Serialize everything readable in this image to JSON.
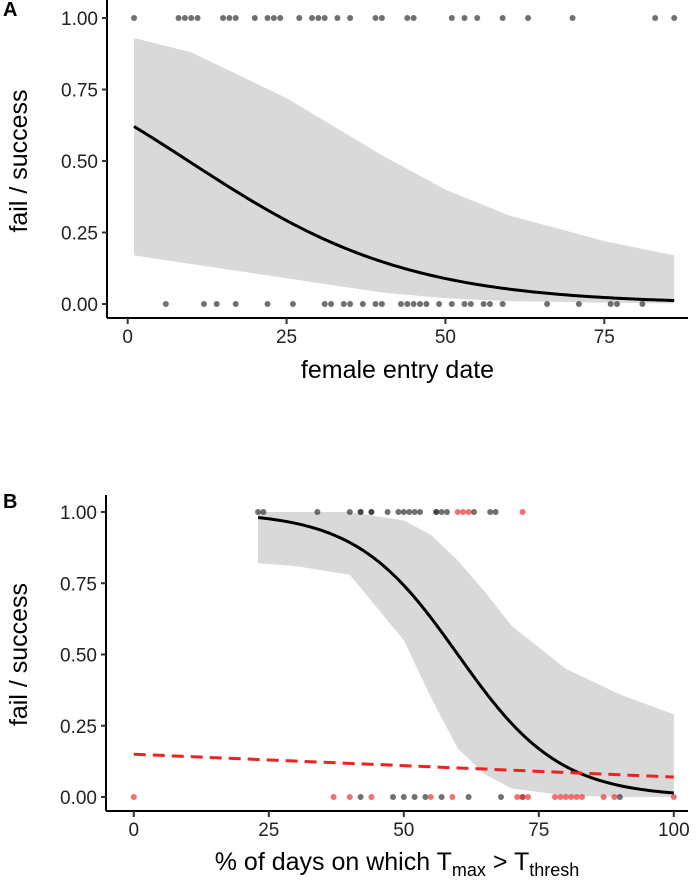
{
  "chart_data": [
    {
      "panel_label": "A",
      "type": "scatter",
      "xlabel": "female entry date",
      "ylabel": "fail / success",
      "xlim": [
        0,
        86
      ],
      "ylim": [
        0,
        1
      ],
      "xticks": [
        "0",
        "25",
        "50",
        "75"
      ],
      "xtick_values": [
        0,
        25,
        50,
        75
      ],
      "yticks": [
        "0.00",
        "0.25",
        "0.50",
        "0.75",
        "1.00"
      ],
      "ytick_values": [
        0,
        0.25,
        0.5,
        0.75,
        1
      ],
      "grid": false,
      "colors": {
        "points": "#333333",
        "fit": "#000000",
        "band": "#d9d9d9"
      },
      "points": [
        {
          "y": 1,
          "x": [
            1,
            8,
            9,
            10,
            11,
            15,
            16,
            17,
            20,
            22,
            23,
            24,
            27,
            29,
            30,
            31,
            33,
            35,
            39,
            40,
            44,
            45,
            51,
            53,
            55,
            59,
            63,
            70,
            83,
            86
          ]
        },
        {
          "y": 0,
          "x": [
            6,
            12,
            14,
            17,
            22,
            26,
            31,
            32,
            34,
            35,
            37,
            39,
            40,
            43,
            44,
            45,
            46,
            47,
            49,
            51,
            53,
            54,
            56,
            57,
            59,
            66,
            71,
            76,
            77,
            81
          ]
        }
      ],
      "fit": {
        "type": "logistic",
        "intercept": 0.55,
        "slope": -0.0575,
        "x_range": [
          1,
          86
        ]
      },
      "band": {
        "x": [
          1,
          10,
          25,
          40,
          50,
          60,
          75,
          86
        ],
        "lower": [
          0.17,
          0.14,
          0.09,
          0.04,
          0.02,
          0.01,
          0.005,
          0.002
        ],
        "upper": [
          0.93,
          0.88,
          0.72,
          0.52,
          0.4,
          0.31,
          0.22,
          0.17
        ]
      }
    },
    {
      "panel_label": "B",
      "type": "scatter",
      "xlabel": "% of days on which T",
      "xlabel_sub1": "max",
      "xlabel_mid": " > T",
      "xlabel_sub2": "thresh",
      "ylabel": "fail / success",
      "xlim": [
        0,
        100
      ],
      "ylim": [
        0,
        1
      ],
      "xticks": [
        "0",
        "25",
        "50",
        "75",
        "100"
      ],
      "xtick_values": [
        0,
        25,
        50,
        75,
        100
      ],
      "yticks": [
        "0.00",
        "0.25",
        "0.50",
        "0.75",
        "1.00"
      ],
      "ytick_values": [
        0,
        0.25,
        0.5,
        0.75,
        1
      ],
      "grid": false,
      "colors": {
        "black_points": "#333333",
        "red_points": "#ee3333",
        "fit": "#000000",
        "band": "#d9d9d9",
        "dashed_fit": "#ee2222"
      },
      "points_black": [
        {
          "y": 1,
          "x": [
            23,
            24,
            34,
            40,
            42,
            42,
            44,
            44,
            47,
            49,
            50,
            51,
            52,
            53,
            56,
            56,
            57,
            58,
            63,
            66,
            67
          ]
        },
        {
          "y": 0,
          "x": [
            42,
            48,
            50,
            52,
            54,
            57,
            62,
            68,
            72,
            90
          ]
        }
      ],
      "points_red": [
        {
          "y": 1,
          "x": [
            60,
            61,
            62,
            72
          ]
        },
        {
          "y": 0,
          "x": [
            0,
            37,
            40,
            44,
            55,
            59,
            71,
            72,
            73,
            78,
            79,
            80,
            81,
            82,
            83,
            87,
            89,
            100
          ]
        }
      ],
      "fit": {
        "type": "logistic",
        "intercept": 6.36,
        "slope": -0.106,
        "x_range": [
          23,
          100
        ]
      },
      "band": {
        "x": [
          23,
          30,
          40,
          50,
          55,
          60,
          65,
          70,
          80,
          90,
          100
        ],
        "lower": [
          0.82,
          0.81,
          0.78,
          0.55,
          0.35,
          0.17,
          0.08,
          0.03,
          0.005,
          0.0,
          0.0
        ],
        "upper": [
          1.0,
          1.0,
          1.0,
          0.97,
          0.92,
          0.83,
          0.72,
          0.6,
          0.45,
          0.36,
          0.29
        ]
      },
      "dashed_fit": {
        "x": [
          0,
          100
        ],
        "y": [
          0.15,
          0.07
        ]
      }
    }
  ]
}
